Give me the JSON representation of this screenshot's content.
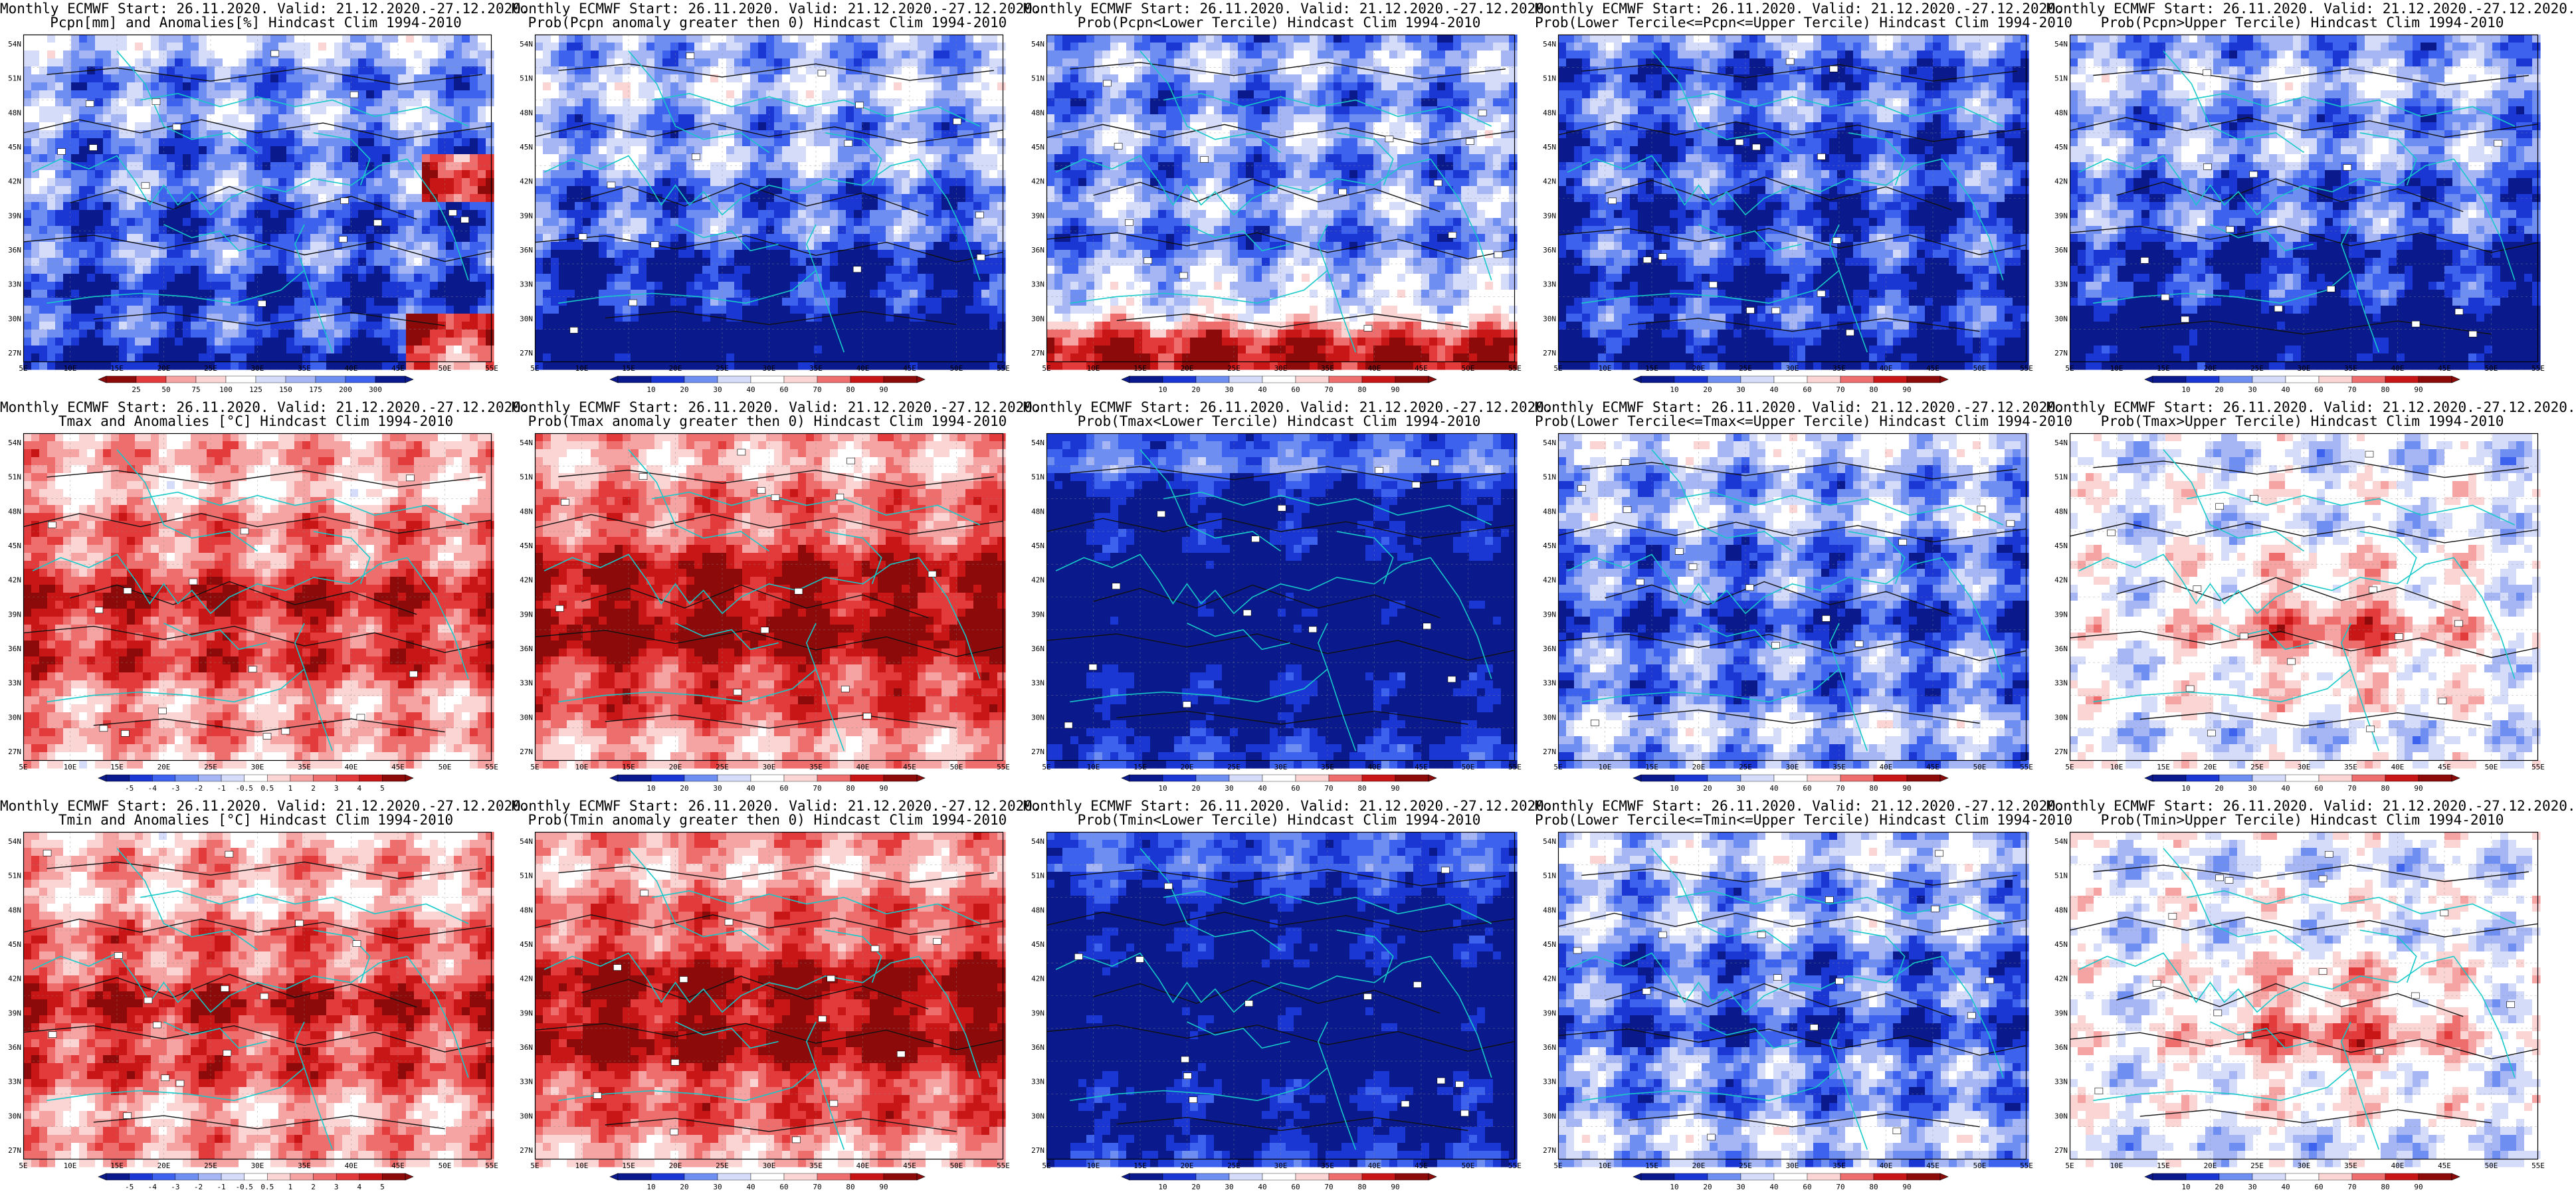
{
  "title_line1": "Monthly ECMWF Start: 26.11.2020. Valid: 21.12.2020.-27.12.2020.",
  "lat_labels": [
    "54N",
    "51N",
    "48N",
    "45N",
    "42N",
    "39N",
    "36N",
    "33N",
    "30N",
    "27N"
  ],
  "lon_labels": [
    "5E",
    "10E",
    "15E",
    "20E",
    "25E",
    "30E",
    "35E",
    "40E",
    "45E",
    "50E",
    "55E"
  ],
  "colorbars": {
    "pcpn_anom": [
      "25",
      "50",
      "75",
      "100",
      "125",
      "150",
      "175",
      "200",
      "300"
    ],
    "prob": [
      "10",
      "20",
      "30",
      "40",
      "60",
      "70",
      "80",
      "90"
    ],
    "temp_anom": [
      "-5",
      "-4",
      "-3",
      "-2",
      "-1",
      "-0.5",
      "0.5",
      "1",
      "2",
      "3",
      "4",
      "5"
    ]
  },
  "colors": {
    "blue_scale": [
      "#0a1a8c",
      "#1a37d4",
      "#3d62ee",
      "#6f8ef2",
      "#a6b6f5",
      "#d5dcfa",
      "#ffffff"
    ],
    "red_scale": [
      "#ffffff",
      "#fbd4d4",
      "#f5a3a3",
      "#ee6e6e",
      "#e33b3b",
      "#c81616",
      "#8c0a0a"
    ],
    "coast": "#17c9c9",
    "contour": "#111111"
  },
  "panels": [
    {
      "id": "pcpn-anom",
      "line2": "Pcpn[mm] and Anomalies[%] Hindcast Clim 1994-2010",
      "scheme": "pcpn-anom",
      "cbar": "pcpn_anom"
    },
    {
      "id": "pcpn-prob-pos",
      "line2": "Prob(Pcpn anomaly greater then 0) Hindcast Clim 1994-2010",
      "scheme": "pcpn-pos",
      "cbar": "prob"
    },
    {
      "id": "pcpn-prob-lower",
      "line2": "Prob(Pcpn<Lower Tercile) Hindcast Clim 1994-2010",
      "scheme": "pcpn-lower",
      "cbar": "prob"
    },
    {
      "id": "pcpn-prob-middle",
      "line2": "Prob(Lower Tercile<=Pcpn<=Upper Tercile) Hindcast Clim 1994-2010",
      "scheme": "pcpn-middle",
      "cbar": "prob"
    },
    {
      "id": "pcpn-prob-upper",
      "line2": "Prob(Pcpn>Upper Tercile) Hindcast Clim 1994-2010",
      "scheme": "pcpn-upper",
      "cbar": "prob"
    },
    {
      "id": "tmax-anom",
      "line2": "Tmax and Anomalies [°C] Hindcast Clim 1994-2010",
      "scheme": "t-anom",
      "cbar": "temp_anom"
    },
    {
      "id": "tmax-prob-pos",
      "line2": "Prob(Tmax anomaly greater then 0) Hindcast Clim 1994-2010",
      "scheme": "t-pos",
      "cbar": "prob"
    },
    {
      "id": "tmax-prob-lower",
      "line2": "Prob(Tmax<Lower Tercile) Hindcast Clim 1994-2010",
      "scheme": "t-lower",
      "cbar": "prob"
    },
    {
      "id": "tmax-prob-middle",
      "line2": "Prob(Lower Tercile<=Tmax<=Upper Tercile) Hindcast Clim 1994-2010",
      "scheme": "t-middle",
      "cbar": "prob"
    },
    {
      "id": "tmax-prob-upper",
      "line2": "Prob(Tmax>Upper Tercile) Hindcast Clim 1994-2010",
      "scheme": "t-upper",
      "cbar": "prob"
    },
    {
      "id": "tmin-anom",
      "line2": "Tmin and Anomalies [°C] Hindcast Clim 1994-2010",
      "scheme": "t-anom",
      "cbar": "temp_anom"
    },
    {
      "id": "tmin-prob-pos",
      "line2": "Prob(Tmin anomaly greater then 0) Hindcast Clim 1994-2010",
      "scheme": "t-pos",
      "cbar": "prob"
    },
    {
      "id": "tmin-prob-lower",
      "line2": "Prob(Tmin<Lower Tercile) Hindcast Clim 1994-2010",
      "scheme": "t-lower",
      "cbar": "prob"
    },
    {
      "id": "tmin-prob-middle",
      "line2": "Prob(Lower Tercile<=Tmin<=Upper Tercile) Hindcast Clim 1994-2010",
      "scheme": "t-middle",
      "cbar": "prob"
    },
    {
      "id": "tmin-prob-upper",
      "line2": "Prob(Tmin>Upper Tercile) Hindcast Clim 1994-2010",
      "scheme": "t-upper",
      "cbar": "prob"
    }
  ]
}
